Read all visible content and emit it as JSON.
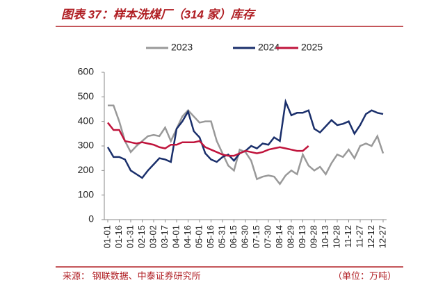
{
  "chart_data": {
    "type": "line",
    "title": "图表 37：样本洗煤厂（314 家）库存",
    "source": "来源：   钢联数据、中泰证券研究所",
    "unit": "（单位：万吨）",
    "categories": [
      "01-01",
      null,
      "01-16",
      null,
      "01-31",
      null,
      "02-15",
      null,
      "03-02",
      null,
      "03-17",
      null,
      "04-01",
      null,
      "04-16",
      null,
      "05-01",
      null,
      "05-16",
      null,
      "05-31",
      null,
      "06-15",
      null,
      "06-30",
      null,
      "07-15",
      null,
      "07-30",
      null,
      "08-14",
      null,
      "08-29",
      null,
      "09-13",
      null,
      "09-28",
      null,
      "10-13",
      null,
      "10-28",
      null,
      "11-12",
      null,
      "11-27",
      null,
      "12-12",
      null,
      "12-27"
    ],
    "series": [
      {
        "name": "2023",
        "color": "#999999",
        "values": [
          465,
          465,
          400,
          320,
          275,
          300,
          320,
          340,
          345,
          340,
          375,
          320,
          370,
          420,
          445,
          420,
          395,
          400,
          400,
          320,
          270,
          220,
          200,
          285,
          275,
          240,
          165,
          175,
          180,
          175,
          145,
          180,
          200,
          185,
          265,
          220,
          200,
          215,
          185,
          230,
          265,
          255,
          285,
          250,
          300,
          310,
          300,
          340,
          270
        ]
      },
      {
        "name": "2024",
        "color": "#1a2f6b",
        "values": [
          295,
          255,
          255,
          245,
          200,
          185,
          170,
          200,
          225,
          250,
          245,
          235,
          370,
          400,
          440,
          360,
          335,
          270,
          245,
          235,
          255,
          265,
          240,
          270,
          280,
          300,
          290,
          310,
          305,
          335,
          320,
          480,
          425,
          435,
          435,
          445,
          370,
          355,
          380,
          405,
          385,
          390,
          400,
          350,
          385,
          430,
          445,
          435,
          430
        ]
      },
      {
        "name": "2025",
        "color": "#c0143c",
        "values": [
          395,
          365,
          365,
          320,
          315,
          310,
          315,
          310,
          305,
          295,
          290,
          305,
          305,
          315,
          315,
          315,
          320,
          295,
          285,
          275,
          265,
          260,
          260,
          270,
          280,
          275,
          270,
          275,
          285,
          290,
          295,
          290,
          285,
          280,
          280,
          300,
          null,
          null,
          null,
          null,
          null,
          null,
          null,
          null,
          null,
          null,
          null,
          null,
          null
        ]
      }
    ],
    "ylim": [
      0,
      600
    ],
    "yticks": [
      0,
      100,
      200,
      300,
      400,
      500,
      600
    ]
  }
}
